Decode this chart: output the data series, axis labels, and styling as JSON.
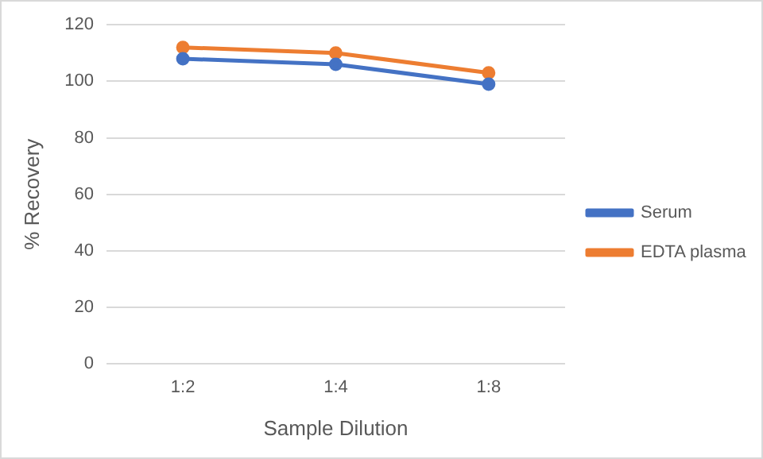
{
  "chart_data": {
    "type": "line",
    "xlabel": "Sample Dilution",
    "ylabel": "% Recovery",
    "categories": [
      "1:2",
      "1:4",
      "1:8"
    ],
    "series": [
      {
        "name": "Serum",
        "color": "#4472c4",
        "values": [
          108,
          106,
          99
        ]
      },
      {
        "name": "EDTA plasma",
        "color": "#ed7d31",
        "values": [
          112,
          110,
          103
        ]
      }
    ],
    "ylim": [
      0,
      120
    ],
    "yticks": [
      0,
      20,
      40,
      60,
      80,
      100,
      120
    ],
    "grid": "y",
    "legend": "right",
    "marker": "circle",
    "line_style": "solid"
  }
}
